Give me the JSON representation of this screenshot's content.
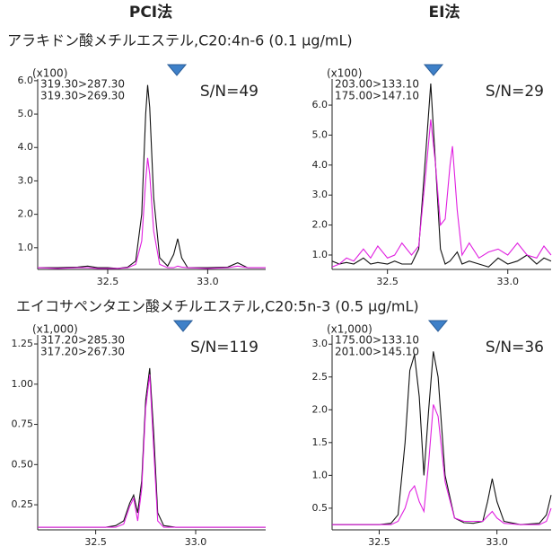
{
  "headers": [
    {
      "text": "PCI法",
      "color": "#1f3fe0"
    },
    {
      "text": "EI法",
      "color": "#e0202a"
    }
  ],
  "sections": [
    "アラキドン酸メチルエステル,C20:4n-6 (0.1 μg/mL)",
    "エイコサペンタエン酸メチルエステル,C20:5n-3 (0.5 μg/mL)"
  ],
  "chart_data": [
    {
      "type": "line",
      "multiplier": "(x100)",
      "annotation": "S/N=49",
      "annotation_color": "#1f3fe0",
      "x": [
        32.15,
        32.25,
        32.35,
        32.4,
        32.45,
        32.5,
        32.55,
        32.6,
        32.64,
        32.67,
        32.69,
        32.7,
        32.71,
        32.73,
        32.76,
        32.8,
        32.83,
        32.85,
        32.87,
        32.9,
        33.0,
        33.1,
        33.15,
        33.2,
        33.29
      ],
      "series": [
        {
          "name": "319.30>287.30",
          "color": "#111111",
          "values": [
            0.4,
            0.4,
            0.42,
            0.45,
            0.4,
            0.4,
            0.38,
            0.42,
            0.6,
            2.0,
            5.0,
            5.87,
            5.2,
            2.5,
            0.7,
            0.45,
            0.8,
            1.27,
            0.7,
            0.4,
            0.4,
            0.42,
            0.55,
            0.4,
            0.4
          ]
        },
        {
          "name": "319.30>269.30",
          "color": "#e020e0",
          "values": [
            0.4,
            0.38,
            0.4,
            0.4,
            0.38,
            0.38,
            0.38,
            0.4,
            0.5,
            1.2,
            3.0,
            3.69,
            3.2,
            1.5,
            0.5,
            0.4,
            0.4,
            0.45,
            0.42,
            0.4,
            0.38,
            0.4,
            0.45,
            0.4,
            0.4
          ]
        }
      ],
      "xlim": [
        32.15,
        33.29
      ],
      "xticks": [
        32.5,
        {
          "value": 33.0,
          "label": "33.0"
        }
      ],
      "ylim": [
        0.35,
        6.05
      ],
      "yticks": [
        {
          "value": 1.0,
          "label": "1.0"
        },
        {
          "value": 2.0,
          "label": "2.0"
        },
        {
          "value": 3.0,
          "label": "3.0"
        },
        {
          "value": 4.0,
          "label": "4.0"
        },
        {
          "value": 5.0,
          "label": "5.0"
        },
        {
          "value": 6.0,
          "label": "6.0"
        }
      ]
    },
    {
      "type": "line",
      "multiplier": "(x100)",
      "annotation": "S/N=29",
      "annotation_color": "#1f3fe0",
      "x": [
        32.27,
        32.3,
        32.33,
        32.36,
        32.4,
        32.43,
        32.46,
        32.5,
        32.53,
        32.56,
        32.6,
        32.63,
        32.66,
        32.68,
        32.7,
        32.72,
        32.74,
        32.76,
        32.77,
        32.79,
        32.81,
        32.84,
        32.88,
        32.92,
        32.96,
        33.0,
        33.04,
        33.08,
        33.12,
        33.15,
        33.18
      ],
      "series": [
        {
          "name": "203.00>133.10",
          "color": "#111111",
          "values": [
            0.8,
            0.7,
            0.75,
            0.7,
            0.9,
            0.7,
            0.75,
            0.7,
            0.8,
            0.7,
            0.7,
            1.2,
            4.5,
            6.72,
            4.0,
            1.2,
            0.7,
            0.8,
            0.9,
            1.1,
            0.7,
            0.8,
            0.7,
            0.6,
            0.9,
            0.7,
            0.8,
            1.0,
            0.7,
            0.9,
            0.8
          ]
        },
        {
          "name": "175.00>147.10",
          "color": "#e020e0",
          "values": [
            0.6,
            0.7,
            0.9,
            0.8,
            1.2,
            0.9,
            1.3,
            0.9,
            1.0,
            1.4,
            1.0,
            1.3,
            3.8,
            5.52,
            4.0,
            2.0,
            2.2,
            4.0,
            4.63,
            2.5,
            1.0,
            1.4,
            0.9,
            1.1,
            1.2,
            1.0,
            1.4,
            1.0,
            0.9,
            1.3,
            1.0
          ]
        }
      ],
      "xlim": [
        32.27,
        33.18
      ],
      "xticks": [
        32.5,
        {
          "value": 33.0,
          "label": "33.0"
        }
      ],
      "ylim": [
        0.52,
        6.87
      ],
      "yticks": [
        {
          "value": 1.0,
          "label": "1.0"
        },
        {
          "value": 2.0,
          "label": "2.0"
        },
        {
          "value": 3.0,
          "label": "3.0"
        },
        {
          "value": 4.0,
          "label": "4.0"
        },
        {
          "value": 5.0,
          "label": "5.0"
        },
        {
          "value": 6.0,
          "label": "6.0"
        }
      ]
    },
    {
      "type": "line",
      "multiplier": "(x1,000)",
      "annotation": "S/N=119",
      "annotation_color": "#1f3fe0",
      "x": [
        32.21,
        32.3,
        32.4,
        32.5,
        32.55,
        32.6,
        32.64,
        32.67,
        32.69,
        32.71,
        32.73,
        32.75,
        32.77,
        32.79,
        32.81,
        32.84,
        32.9,
        33.0,
        33.1,
        33.2,
        33.35
      ],
      "series": [
        {
          "name": "317.20>285.30",
          "color": "#111111",
          "values": [
            0.11,
            0.11,
            0.11,
            0.11,
            0.11,
            0.12,
            0.15,
            0.26,
            0.31,
            0.2,
            0.4,
            0.9,
            1.1,
            0.7,
            0.2,
            0.12,
            0.11,
            0.11,
            0.11,
            0.11,
            0.11
          ]
        },
        {
          "name": "317.20>267.30",
          "color": "#e020e0",
          "values": [
            0.11,
            0.11,
            0.11,
            0.11,
            0.11,
            0.11,
            0.13,
            0.24,
            0.29,
            0.15,
            0.35,
            0.85,
            1.06,
            0.6,
            0.15,
            0.11,
            0.11,
            0.11,
            0.11,
            0.11,
            0.11
          ]
        }
      ],
      "xlim": [
        32.21,
        33.35
      ],
      "xticks": [
        32.5,
        {
          "value": 33.0,
          "label": "33.0"
        }
      ],
      "ylim": [
        0.094,
        1.306
      ],
      "yticks": [
        0.25,
        {
          "value": 0.5,
          "label": "0.50"
        },
        0.75,
        {
          "value": 1.0,
          "label": "1.00"
        },
        {
          "value": 1.25,
          "label": "1.25"
        }
      ]
    },
    {
      "type": "line",
      "multiplier": "(x1,000)",
      "annotation": "S/N=36",
      "annotation_color": "#1f3fe0",
      "x": [
        32.3,
        32.4,
        32.5,
        32.55,
        32.58,
        32.61,
        32.63,
        32.65,
        32.67,
        32.69,
        32.71,
        32.73,
        32.75,
        32.78,
        32.82,
        32.86,
        32.9,
        32.94,
        32.96,
        32.98,
        33.0,
        33.03,
        33.1,
        33.18,
        33.21,
        33.23
      ],
      "series": [
        {
          "name": "175.00>133.10",
          "color": "#111111",
          "values": [
            0.25,
            0.25,
            0.25,
            0.27,
            0.4,
            1.5,
            2.6,
            2.84,
            2.2,
            1.0,
            2.0,
            2.89,
            2.5,
            1.0,
            0.35,
            0.28,
            0.27,
            0.3,
            0.6,
            0.95,
            0.6,
            0.3,
            0.25,
            0.27,
            0.4,
            0.7
          ]
        },
        {
          "name": "201.00>145.10",
          "color": "#e020e0",
          "values": [
            0.25,
            0.25,
            0.25,
            0.25,
            0.3,
            0.5,
            0.75,
            0.84,
            0.6,
            0.45,
            1.2,
            2.08,
            1.9,
            0.9,
            0.35,
            0.3,
            0.3,
            0.3,
            0.38,
            0.45,
            0.35,
            0.27,
            0.25,
            0.25,
            0.3,
            0.5
          ]
        }
      ],
      "xlim": [
        32.3,
        33.23
      ],
      "xticks": [
        32.5,
        {
          "value": 33.0,
          "label": "33.0"
        }
      ],
      "ylim": [
        0.17,
        3.14
      ],
      "yticks": [
        {
          "value": 0.5,
          "label": "0.5"
        },
        {
          "value": 1.0,
          "label": "1.0"
        },
        {
          "value": 1.5,
          "label": "1.5"
        },
        {
          "value": 2.0,
          "label": "2.0"
        },
        {
          "value": 2.5,
          "label": "2.5"
        },
        {
          "value": 3.0,
          "label": "3.0"
        }
      ]
    }
  ]
}
